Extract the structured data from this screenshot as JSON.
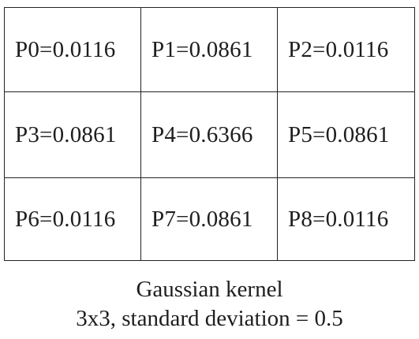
{
  "kernel": {
    "cells": [
      [
        "P0=0.0116",
        "P1=0.0861",
        "P2=0.0116"
      ],
      [
        "P3=0.0861",
        "P4=0.6366",
        "P5=0.0861"
      ],
      [
        "P6=0.0116",
        "P7=0.0861",
        "P8=0.0116"
      ]
    ]
  },
  "caption": {
    "title": "Gaussian kernel",
    "subtitle": "3x3, standard deviation = 0.5"
  }
}
